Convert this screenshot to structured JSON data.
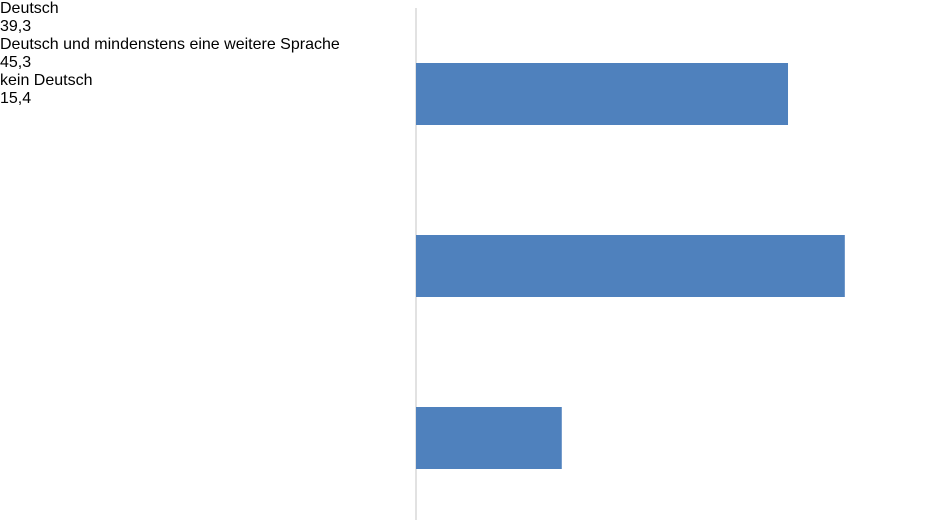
{
  "chart_data": {
    "type": "bar",
    "orientation": "horizontal",
    "categories": [
      "Deutsch",
      "Deutsch und mindenstens eine weitere Sprache",
      "kein Deutsch"
    ],
    "values": [
      39.3,
      45.3,
      15.4
    ],
    "value_labels": [
      "39,3",
      "45,3",
      "15,4"
    ],
    "color": "#4f81bd"
  }
}
